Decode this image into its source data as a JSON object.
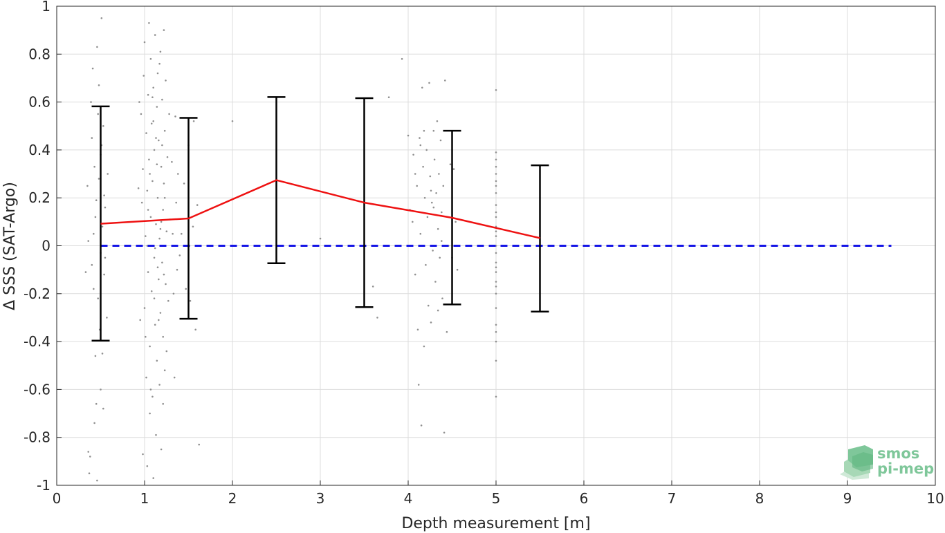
{
  "chart_data": {
    "type": "scatter",
    "title": "",
    "xlabel": "Depth measurement [m]",
    "ylabel": "Δ SSS (SAT-Argo)",
    "xlim": [
      0,
      10
    ],
    "ylim": [
      -1,
      1
    ],
    "xticks": [
      "0",
      "1",
      "2",
      "3",
      "4",
      "5",
      "6",
      "7",
      "8",
      "9",
      "10"
    ],
    "yticks": [
      "-1",
      "-0.8",
      "-0.6",
      "-0.4",
      "-0.2",
      "0",
      "0.2",
      "0.4",
      "0.6",
      "0.8",
      "1"
    ],
    "grid": true,
    "mean_line": {
      "color": "#ee1111",
      "x": [
        0.5,
        1.5,
        2.5,
        3.5,
        4.5,
        5.5
      ],
      "y": [
        0.092,
        0.114,
        0.274,
        0.18,
        0.117,
        0.032
      ]
    },
    "error_bars": {
      "color": "#000000",
      "x": [
        0.5,
        1.5,
        2.5,
        3.5,
        4.5,
        5.5
      ],
      "lower": [
        -0.396,
        -0.305,
        -0.073,
        -0.256,
        -0.245,
        -0.275
      ],
      "upper": [
        0.582,
        0.534,
        0.621,
        0.616,
        0.48,
        0.336
      ]
    },
    "zero_line": {
      "color": "#1414e6",
      "x": [
        0.5,
        9.5
      ],
      "y": 0
    },
    "scatter": {
      "color": "#909090",
      "points": [
        [
          0.33,
          -0.11
        ],
        [
          0.35,
          0.25
        ],
        [
          0.36,
          -0.86
        ],
        [
          0.37,
          -0.95
        ],
        [
          0.38,
          -0.88
        ],
        [
          0.4,
          0.45
        ],
        [
          0.4,
          -0.08
        ],
        [
          0.41,
          0.74
        ],
        [
          0.42,
          0.05
        ],
        [
          0.43,
          0.33
        ],
        [
          0.44,
          -0.46
        ],
        [
          0.44,
          0.12
        ],
        [
          0.45,
          -0.66
        ],
        [
          0.45,
          0.19
        ],
        [
          0.46,
          0.83
        ],
        [
          0.46,
          -0.98
        ],
        [
          0.47,
          -0.22
        ],
        [
          0.48,
          0.67
        ],
        [
          0.48,
          0.28
        ],
        [
          0.49,
          -0.35
        ],
        [
          0.5,
          0.38
        ],
        [
          0.5,
          -0.6
        ],
        [
          0.51,
          0.95
        ],
        [
          0.51,
          0.42
        ],
        [
          0.52,
          -0.45
        ],
        [
          0.52,
          0.08
        ],
        [
          0.53,
          0.5
        ],
        [
          0.53,
          -0.68
        ],
        [
          0.54,
          -0.12
        ],
        [
          0.54,
          0.21
        ],
        [
          0.55,
          -0.05
        ],
        [
          0.55,
          0.16
        ],
        [
          0.57,
          -0.3
        ],
        [
          0.58,
          0.3
        ],
        [
          0.42,
          -0.18
        ],
        [
          0.39,
          0.6
        ],
        [
          0.47,
          0.55
        ],
        [
          0.43,
          -0.74
        ],
        [
          0.5,
          -0.03
        ],
        [
          0.36,
          0.02
        ],
        [
          0.96,
          0.55
        ],
        [
          0.97,
          0.18
        ],
        [
          0.98,
          -0.87
        ],
        [
          0.98,
          0.32
        ],
        [
          0.99,
          0.71
        ],
        [
          1.0,
          -0.26
        ],
        [
          1.0,
          0.85
        ],
        [
          1.01,
          0.04
        ],
        [
          1.02,
          -0.55
        ],
        [
          1.02,
          0.47
        ],
        [
          1.03,
          -0.92
        ],
        [
          1.03,
          0.23
        ],
        [
          1.04,
          0.63
        ],
        [
          1.04,
          -0.11
        ],
        [
          1.05,
          0.93
        ],
        [
          1.05,
          0.36
        ],
        [
          1.06,
          -0.42
        ],
        [
          1.06,
          -0.7
        ],
        [
          1.07,
          0.12
        ],
        [
          1.07,
          0.78
        ],
        [
          1.08,
          -0.19
        ],
        [
          1.08,
          0.51
        ],
        [
          1.09,
          -0.63
        ],
        [
          1.09,
          0.27
        ],
        [
          1.1,
          -0.97
        ],
        [
          1.1,
          0.66
        ],
        [
          1.11,
          -0.05
        ],
        [
          1.11,
          0.4
        ],
        [
          1.12,
          -0.33
        ],
        [
          1.12,
          0.88
        ],
        [
          1.13,
          0.09
        ],
        [
          1.13,
          -0.79
        ],
        [
          1.14,
          0.58
        ],
        [
          1.14,
          -0.48
        ],
        [
          1.15,
          0.2
        ],
        [
          1.15,
          0.72
        ],
        [
          1.16,
          -0.14
        ],
        [
          1.16,
          0.44
        ],
        [
          1.17,
          -0.58
        ],
        [
          1.17,
          0.03
        ],
        [
          1.18,
          0.81
        ],
        [
          1.18,
          -0.28
        ],
        [
          1.19,
          0.33
        ],
        [
          1.19,
          -0.85
        ],
        [
          1.2,
          0.61
        ],
        [
          1.2,
          -0.07
        ],
        [
          1.21,
          0.15
        ],
        [
          1.21,
          -0.38
        ],
        [
          1.22,
          0.9
        ],
        [
          1.22,
          0.26
        ],
        [
          1.23,
          -0.52
        ],
        [
          1.23,
          0.48
        ],
        [
          1.24,
          -0.16
        ],
        [
          1.24,
          0.69
        ],
        [
          1.25,
          0.06
        ],
        [
          1.25,
          -0.44
        ],
        [
          1.26,
          0.37
        ],
        [
          1.27,
          -0.23
        ],
        [
          1.28,
          0.55
        ],
        [
          1.29,
          0.11
        ],
        [
          1.03,
          0.0
        ],
        [
          1.06,
          0.3
        ],
        [
          1.09,
          0.62
        ],
        [
          1.11,
          -0.22
        ],
        [
          1.13,
          0.45
        ],
        [
          1.15,
          -0.09
        ],
        [
          1.17,
          0.76
        ],
        [
          1.19,
          0.1
        ],
        [
          1.21,
          -0.66
        ],
        [
          1.23,
          0.2
        ],
        [
          1.01,
          -0.38
        ],
        [
          1.04,
          0.15
        ],
        [
          1.07,
          -0.6
        ],
        [
          1.1,
          0.52
        ],
        [
          1.12,
          -0.01
        ],
        [
          1.14,
          0.34
        ],
        [
          1.16,
          -0.31
        ],
        [
          1.18,
          0.07
        ],
        [
          1.2,
          0.42
        ],
        [
          1.22,
          -0.12
        ],
        [
          0.93,
          0.24
        ],
        [
          0.95,
          -0.31
        ],
        [
          0.94,
          0.6
        ],
        [
          1.31,
          0.35
        ],
        [
          1.33,
          -0.2
        ],
        [
          1.32,
          0.05
        ],
        [
          1.35,
          0.54
        ],
        [
          1.37,
          -0.1
        ],
        [
          1.36,
          0.18
        ],
        [
          1.4,
          -0.04
        ],
        [
          1.45,
          0.26
        ],
        [
          1.47,
          -0.18
        ],
        [
          1.5,
          0.42
        ],
        [
          1.52,
          -0.23
        ],
        [
          1.55,
          0.08
        ],
        [
          1.58,
          -0.35
        ],
        [
          1.6,
          0.17
        ],
        [
          1.62,
          -0.83
        ],
        [
          1.34,
          -0.55
        ],
        [
          1.38,
          0.3
        ],
        [
          1.42,
          0.05
        ],
        [
          1.56,
          0.52
        ],
        [
          2.0,
          0.52
        ],
        [
          3.0,
          0.03
        ],
        [
          3.6,
          -0.17
        ],
        [
          3.65,
          -0.3
        ],
        [
          3.78,
          0.62
        ],
        [
          3.93,
          0.78
        ],
        [
          4.0,
          0.46
        ],
        [
          4.02,
          0.15
        ],
        [
          4.05,
          0.1
        ],
        [
          4.06,
          0.38
        ],
        [
          4.08,
          -0.12
        ],
        [
          4.1,
          0.25
        ],
        [
          4.11,
          -0.35
        ],
        [
          4.12,
          -0.58
        ],
        [
          4.13,
          0.45
        ],
        [
          4.14,
          0.05
        ],
        [
          4.15,
          -0.75
        ],
        [
          4.16,
          0.66
        ],
        [
          4.17,
          0.33
        ],
        [
          4.18,
          -0.42
        ],
        [
          4.19,
          0.2
        ],
        [
          4.2,
          -0.08
        ],
        [
          4.21,
          0.4
        ],
        [
          4.22,
          0.12
        ],
        [
          4.23,
          -0.25
        ],
        [
          4.24,
          0.68
        ],
        [
          4.25,
          0.29
        ],
        [
          4.26,
          -0.32
        ],
        [
          4.27,
          0.18
        ],
        [
          4.28,
          -0.02
        ],
        [
          4.29,
          0.48
        ],
        [
          4.3,
          0.36
        ],
        [
          4.31,
          -0.15
        ],
        [
          4.32,
          0.22
        ],
        [
          4.33,
          0.52
        ],
        [
          4.34,
          0.07
        ],
        [
          4.35,
          0.3
        ],
        [
          4.36,
          -0.05
        ],
        [
          4.37,
          0.44
        ],
        [
          4.38,
          0.14
        ],
        [
          4.39,
          -0.22
        ],
        [
          4.4,
          0.25
        ],
        [
          4.41,
          -0.78
        ],
        [
          4.42,
          0.69
        ],
        [
          4.44,
          -0.36
        ],
        [
          4.46,
          0.0
        ],
        [
          4.48,
          0.34
        ],
        [
          4.5,
          -0.05
        ],
        [
          4.52,
          0.32
        ],
        [
          4.54,
          0.1
        ],
        [
          4.56,
          -0.1
        ],
        [
          4.14,
          0.42
        ],
        [
          4.26,
          0.23
        ],
        [
          4.34,
          -0.27
        ],
        [
          4.08,
          0.3
        ],
        [
          4.18,
          0.48
        ],
        [
          4.29,
          0.16
        ],
        [
          4.38,
          0.02
        ],
        [
          5.0,
          0.65
        ],
        [
          5.0,
          0.39
        ],
        [
          5.0,
          0.33
        ],
        [
          5.0,
          0.27
        ],
        [
          5.0,
          0.22
        ],
        [
          5.0,
          0.17
        ],
        [
          5.0,
          0.12
        ],
        [
          5.0,
          0.08
        ],
        [
          5.0,
          0.04
        ],
        [
          5.0,
          0.0
        ],
        [
          5.0,
          -0.03
        ],
        [
          5.0,
          -0.07
        ],
        [
          5.0,
          -0.11
        ],
        [
          5.0,
          -0.15
        ],
        [
          5.0,
          -0.2
        ],
        [
          5.0,
          -0.26
        ],
        [
          5.0,
          -0.33
        ],
        [
          5.0,
          -0.4
        ],
        [
          5.0,
          -0.48
        ],
        [
          5.0,
          -0.63
        ],
        [
          5.0,
          0.36
        ],
        [
          5.0,
          0.3
        ],
        [
          5.0,
          0.14
        ],
        [
          5.0,
          -0.17
        ],
        [
          5.0,
          -0.36
        ],
        [
          5.0,
          0.25
        ],
        [
          5.0,
          0.06
        ],
        [
          5.0,
          -0.09
        ]
      ]
    }
  },
  "logo": {
    "line1": "smos",
    "line2": "pi-mep"
  },
  "colors": {
    "grid": "#dcdcdc",
    "axis": "#262626",
    "background": "#ffffff",
    "logo_green": "#7fc79a"
  }
}
